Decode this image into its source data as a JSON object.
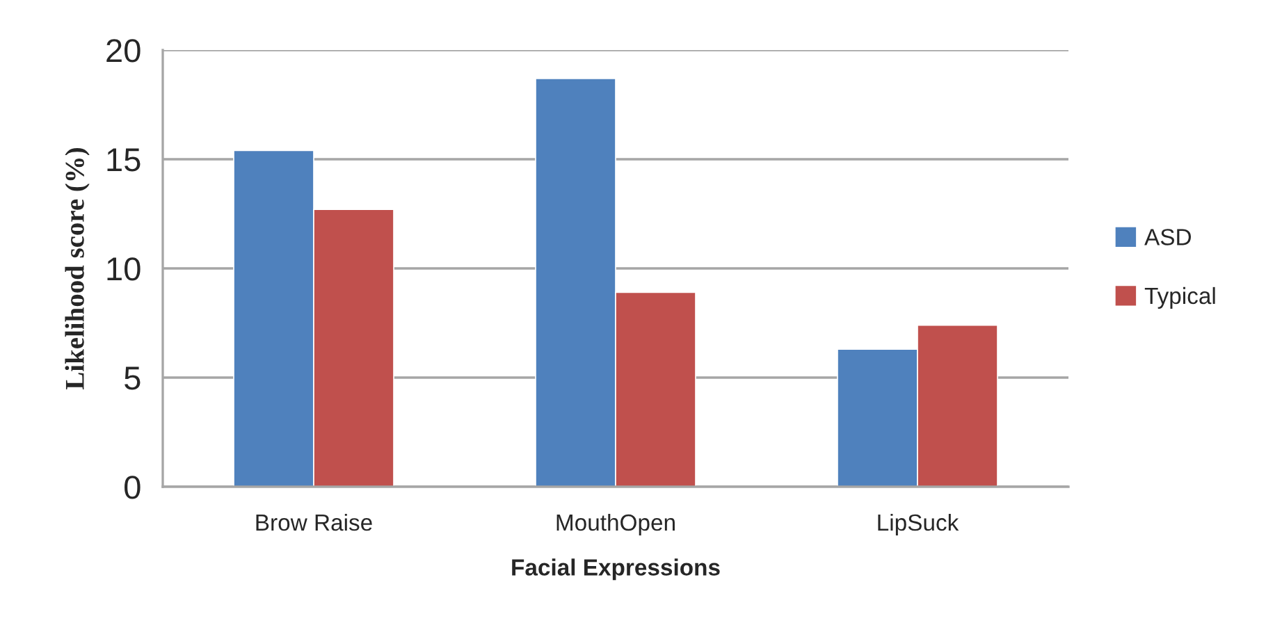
{
  "chart_data": {
    "type": "bar",
    "xlabel": "Facial Expressions",
    "ylabel": "Likelihood score (%)",
    "categories": [
      "Brow Raise",
      "MouthOpen",
      "LipSuck"
    ],
    "series": [
      {
        "name": "ASD",
        "color": "#4f81bd",
        "values": [
          15.4,
          18.7,
          6.3
        ]
      },
      {
        "name": "Typical",
        "color": "#c0504d",
        "values": [
          12.7,
          8.9,
          7.4
        ]
      }
    ],
    "ylim": [
      0,
      20
    ],
    "yticks": [
      0,
      5,
      10,
      15,
      20
    ],
    "grid": "y",
    "legend": "right"
  }
}
